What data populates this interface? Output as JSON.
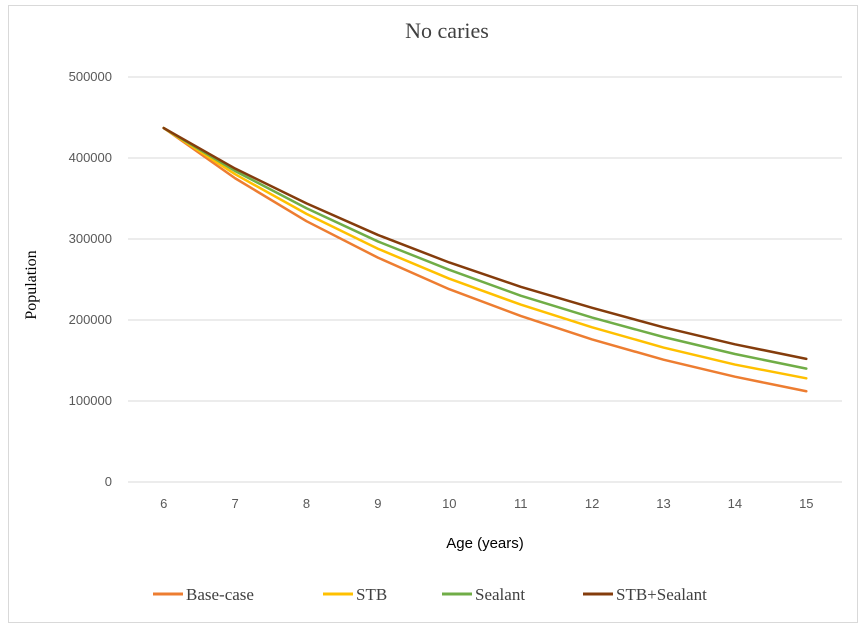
{
  "chart_data": {
    "type": "line",
    "title": "No caries",
    "xlabel": "Age (years)",
    "ylabel": "Population",
    "x": [
      6,
      7,
      8,
      9,
      10,
      11,
      12,
      13,
      14,
      15
    ],
    "ylim": [
      0,
      500000
    ],
    "yticks": [
      0,
      100000,
      200000,
      300000,
      400000,
      500000
    ],
    "ytick_labels": [
      "0",
      "100000",
      "200000",
      "300000",
      "400000",
      "500000"
    ],
    "xtick_labels": [
      "6",
      "7",
      "8",
      "9",
      "10",
      "11",
      "12",
      "13",
      "14",
      "15"
    ],
    "grid": true,
    "legend_position": "bottom",
    "series": [
      {
        "name": "Base-case",
        "color": "#ed7d31",
        "values": [
          437000,
          375000,
          322000,
          277000,
          238000,
          205000,
          176000,
          151000,
          130000,
          112000
        ]
      },
      {
        "name": "STB",
        "color": "#ffc000",
        "values": [
          437000,
          380000,
          331000,
          288000,
          251000,
          219000,
          191000,
          166000,
          145000,
          128000
        ]
      },
      {
        "name": "Sealant",
        "color": "#70ad47",
        "values": [
          437000,
          384000,
          338000,
          297000,
          262000,
          230000,
          203000,
          179000,
          158000,
          140000
        ]
      },
      {
        "name": "STB+Sealant",
        "color": "#843c0c",
        "values": [
          437000,
          387000,
          344000,
          305000,
          271000,
          241000,
          215000,
          191000,
          170000,
          152000
        ]
      }
    ]
  }
}
